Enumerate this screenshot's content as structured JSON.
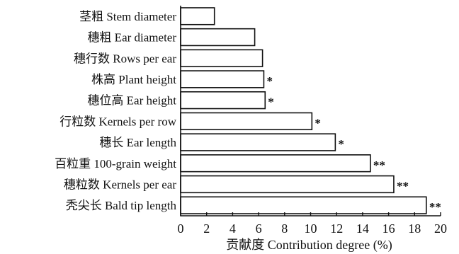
{
  "chart_data": {
    "type": "bar",
    "orientation": "horizontal",
    "categories": [
      "茎粗 Stem diameter",
      "穗粗 Ear diameter",
      "穗行数 Rows per ear",
      "株高 Plant height",
      "穗位高 Ear height",
      "行粒数 Kernels per row",
      "穗长 Ear length",
      "百粒重 100-grain weight",
      "穗粒数 Kernels per ear",
      "秃尖长 Bald tip length"
    ],
    "values": [
      2.6,
      5.7,
      6.3,
      6.4,
      6.5,
      10.1,
      11.9,
      14.6,
      16.4,
      18.9
    ],
    "significance": [
      "",
      "",
      "",
      "*",
      "*",
      "*",
      "*",
      "**",
      "**",
      "**"
    ],
    "xlabel": "贡献度 Contribution degree (%)",
    "xlim": [
      0,
      20
    ],
    "xticks": [
      "0",
      "2",
      "4",
      "6",
      "8",
      "10",
      "12",
      "14",
      "16",
      "18",
      "20"
    ],
    "grid": false
  }
}
